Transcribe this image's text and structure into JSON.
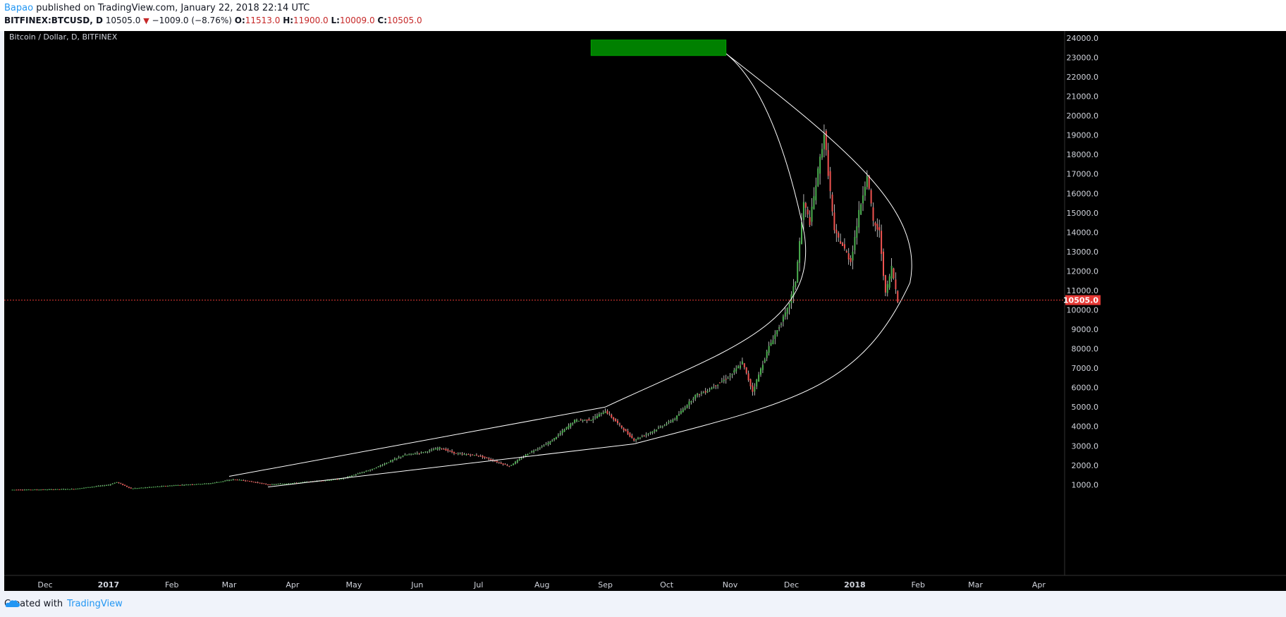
{
  "header": {
    "author": "Bapao",
    "published_text": "published on TradingView.com, January 22, 2018 22:14 UTC",
    "symbol": "BITFINEX:BTCUSD, D",
    "last": "10505.0",
    "change": "−1009.0 (−8.76%)",
    "o_label": "O:",
    "o_value": "11513.0",
    "h_label": "H:",
    "h_value": "11900.0",
    "l_label": "L:",
    "l_value": "10009.0",
    "c_label": "C:",
    "c_value": "10505.0"
  },
  "footer": {
    "created_with": "Created with",
    "brand": "TradingView"
  },
  "colors": {
    "up": "#4caf50",
    "down": "#ef5350",
    "price_marker": "#e53935",
    "drawing": "#ffffff",
    "target_box": "#008000"
  },
  "chart_data": {
    "type": "candlestick",
    "title": "Bitcoin / Dollar, D, BITFINEX",
    "ylim": [
      0,
      24500
    ],
    "y_ticks": [
      "1000.0",
      "2000.0",
      "3000.0",
      "4000.0",
      "5000.0",
      "6000.0",
      "7000.0",
      "8000.0",
      "9000.0",
      "10000.0",
      "11000.0",
      "12000.0",
      "13000.0",
      "14000.0",
      "15000.0",
      "16000.0",
      "17000.0",
      "18000.0",
      "19000.0",
      "20000.0",
      "21000.0",
      "22000.0",
      "23000.0",
      "24000.0"
    ],
    "x_ticks": [
      "Dec",
      "2017",
      "Feb",
      "Mar",
      "Apr",
      "May",
      "Jun",
      "Jul",
      "Aug",
      "Sep",
      "Oct",
      "Nov",
      "Dec",
      "2018",
      "Feb",
      "Mar",
      "Apr"
    ],
    "bold_ticks": [
      "2017",
      "2018"
    ],
    "last_price": 10505.0,
    "last_price_label": "10505.0",
    "price_path": [
      [
        "2016-11-15",
        740
      ],
      [
        "2016-12-01",
        750
      ],
      [
        "2016-12-15",
        780
      ],
      [
        "2017-01-01",
        990
      ],
      [
        "2017-01-05",
        1130
      ],
      [
        "2017-01-12",
        800
      ],
      [
        "2017-02-01",
        960
      ],
      [
        "2017-02-20",
        1070
      ],
      [
        "2017-03-03",
        1270
      ],
      [
        "2017-03-10",
        1200
      ],
      [
        "2017-03-20",
        1000
      ],
      [
        "2017-04-01",
        1080
      ],
      [
        "2017-04-25",
        1300
      ],
      [
        "2017-05-10",
        1800
      ],
      [
        "2017-05-25",
        2500
      ],
      [
        "2017-06-05",
        2700
      ],
      [
        "2017-06-12",
        2900
      ],
      [
        "2017-06-20",
        2600
      ],
      [
        "2017-07-01",
        2500
      ],
      [
        "2017-07-16",
        1950
      ],
      [
        "2017-07-25",
        2600
      ],
      [
        "2017-08-05",
        3200
      ],
      [
        "2017-08-17",
        4300
      ],
      [
        "2017-08-25",
        4350
      ],
      [
        "2017-09-01",
        4800
      ],
      [
        "2017-09-15",
        3300
      ],
      [
        "2017-09-25",
        3800
      ],
      [
        "2017-10-05",
        4400
      ],
      [
        "2017-10-15",
        5600
      ],
      [
        "2017-10-20",
        5800
      ],
      [
        "2017-11-01",
        6600
      ],
      [
        "2017-11-07",
        7300
      ],
      [
        "2017-11-12",
        5800
      ],
      [
        "2017-11-20",
        8100
      ],
      [
        "2017-11-29",
        10000
      ],
      [
        "2017-12-03",
        11500
      ],
      [
        "2017-12-07",
        15500
      ],
      [
        "2017-12-10",
        14500
      ],
      [
        "2017-12-17",
        19100
      ],
      [
        "2017-12-22",
        14000
      ],
      [
        "2017-12-25",
        13500
      ],
      [
        "2017-12-30",
        12500
      ],
      [
        "2018-01-03",
        15000
      ],
      [
        "2018-01-07",
        17000
      ],
      [
        "2018-01-10",
        14500
      ],
      [
        "2018-01-13",
        14000
      ],
      [
        "2018-01-16",
        10800
      ],
      [
        "2018-01-19",
        12200
      ],
      [
        "2018-01-22",
        10505
      ]
    ],
    "annotations": {
      "channel_upper": [
        [
          "2017-03-01",
          1430
        ],
        [
          "2017-09-01",
          5000
        ]
      ],
      "channel_lower": [
        [
          "2017-03-20",
          880
        ],
        [
          "2017-09-15",
          3100
        ]
      ],
      "arc_top": [
        "2017-10-30",
        23200
      ],
      "arc_vertex": [
        "2018-01-28",
        11400
      ],
      "target_zone": {
        "x": [
          "2017-08-25",
          "2017-10-30"
        ],
        "y": [
          23100,
          23900
        ]
      }
    }
  }
}
